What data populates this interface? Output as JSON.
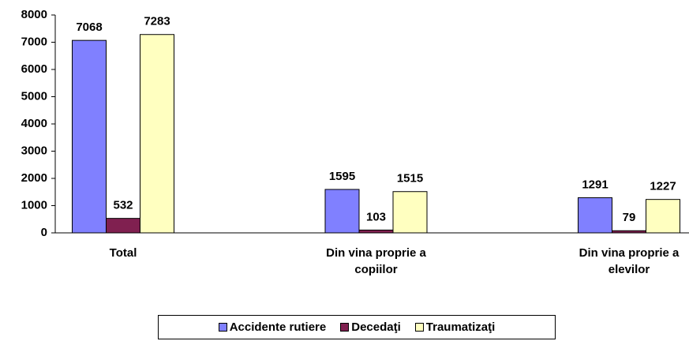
{
  "chart_data": {
    "type": "bar",
    "categories": [
      "Total",
      "Din vina proprie a copiilor",
      "Din vina proprie a elevilor"
    ],
    "series": [
      {
        "name": "Accidente rutiere",
        "color": "#8080ff",
        "values": [
          7068,
          1595,
          1291
        ]
      },
      {
        "name": "Decedaţi",
        "color": "#802050",
        "values": [
          532,
          103,
          79
        ]
      },
      {
        "name": "Traumatizaţi",
        "color": "#ffffc0",
        "values": [
          7283,
          1515,
          1227
        ]
      }
    ],
    "ylim": [
      0,
      8000
    ],
    "yticks": [
      0,
      1000,
      2000,
      3000,
      4000,
      5000,
      6000,
      7000,
      8000
    ],
    "legend": "bottom"
  }
}
